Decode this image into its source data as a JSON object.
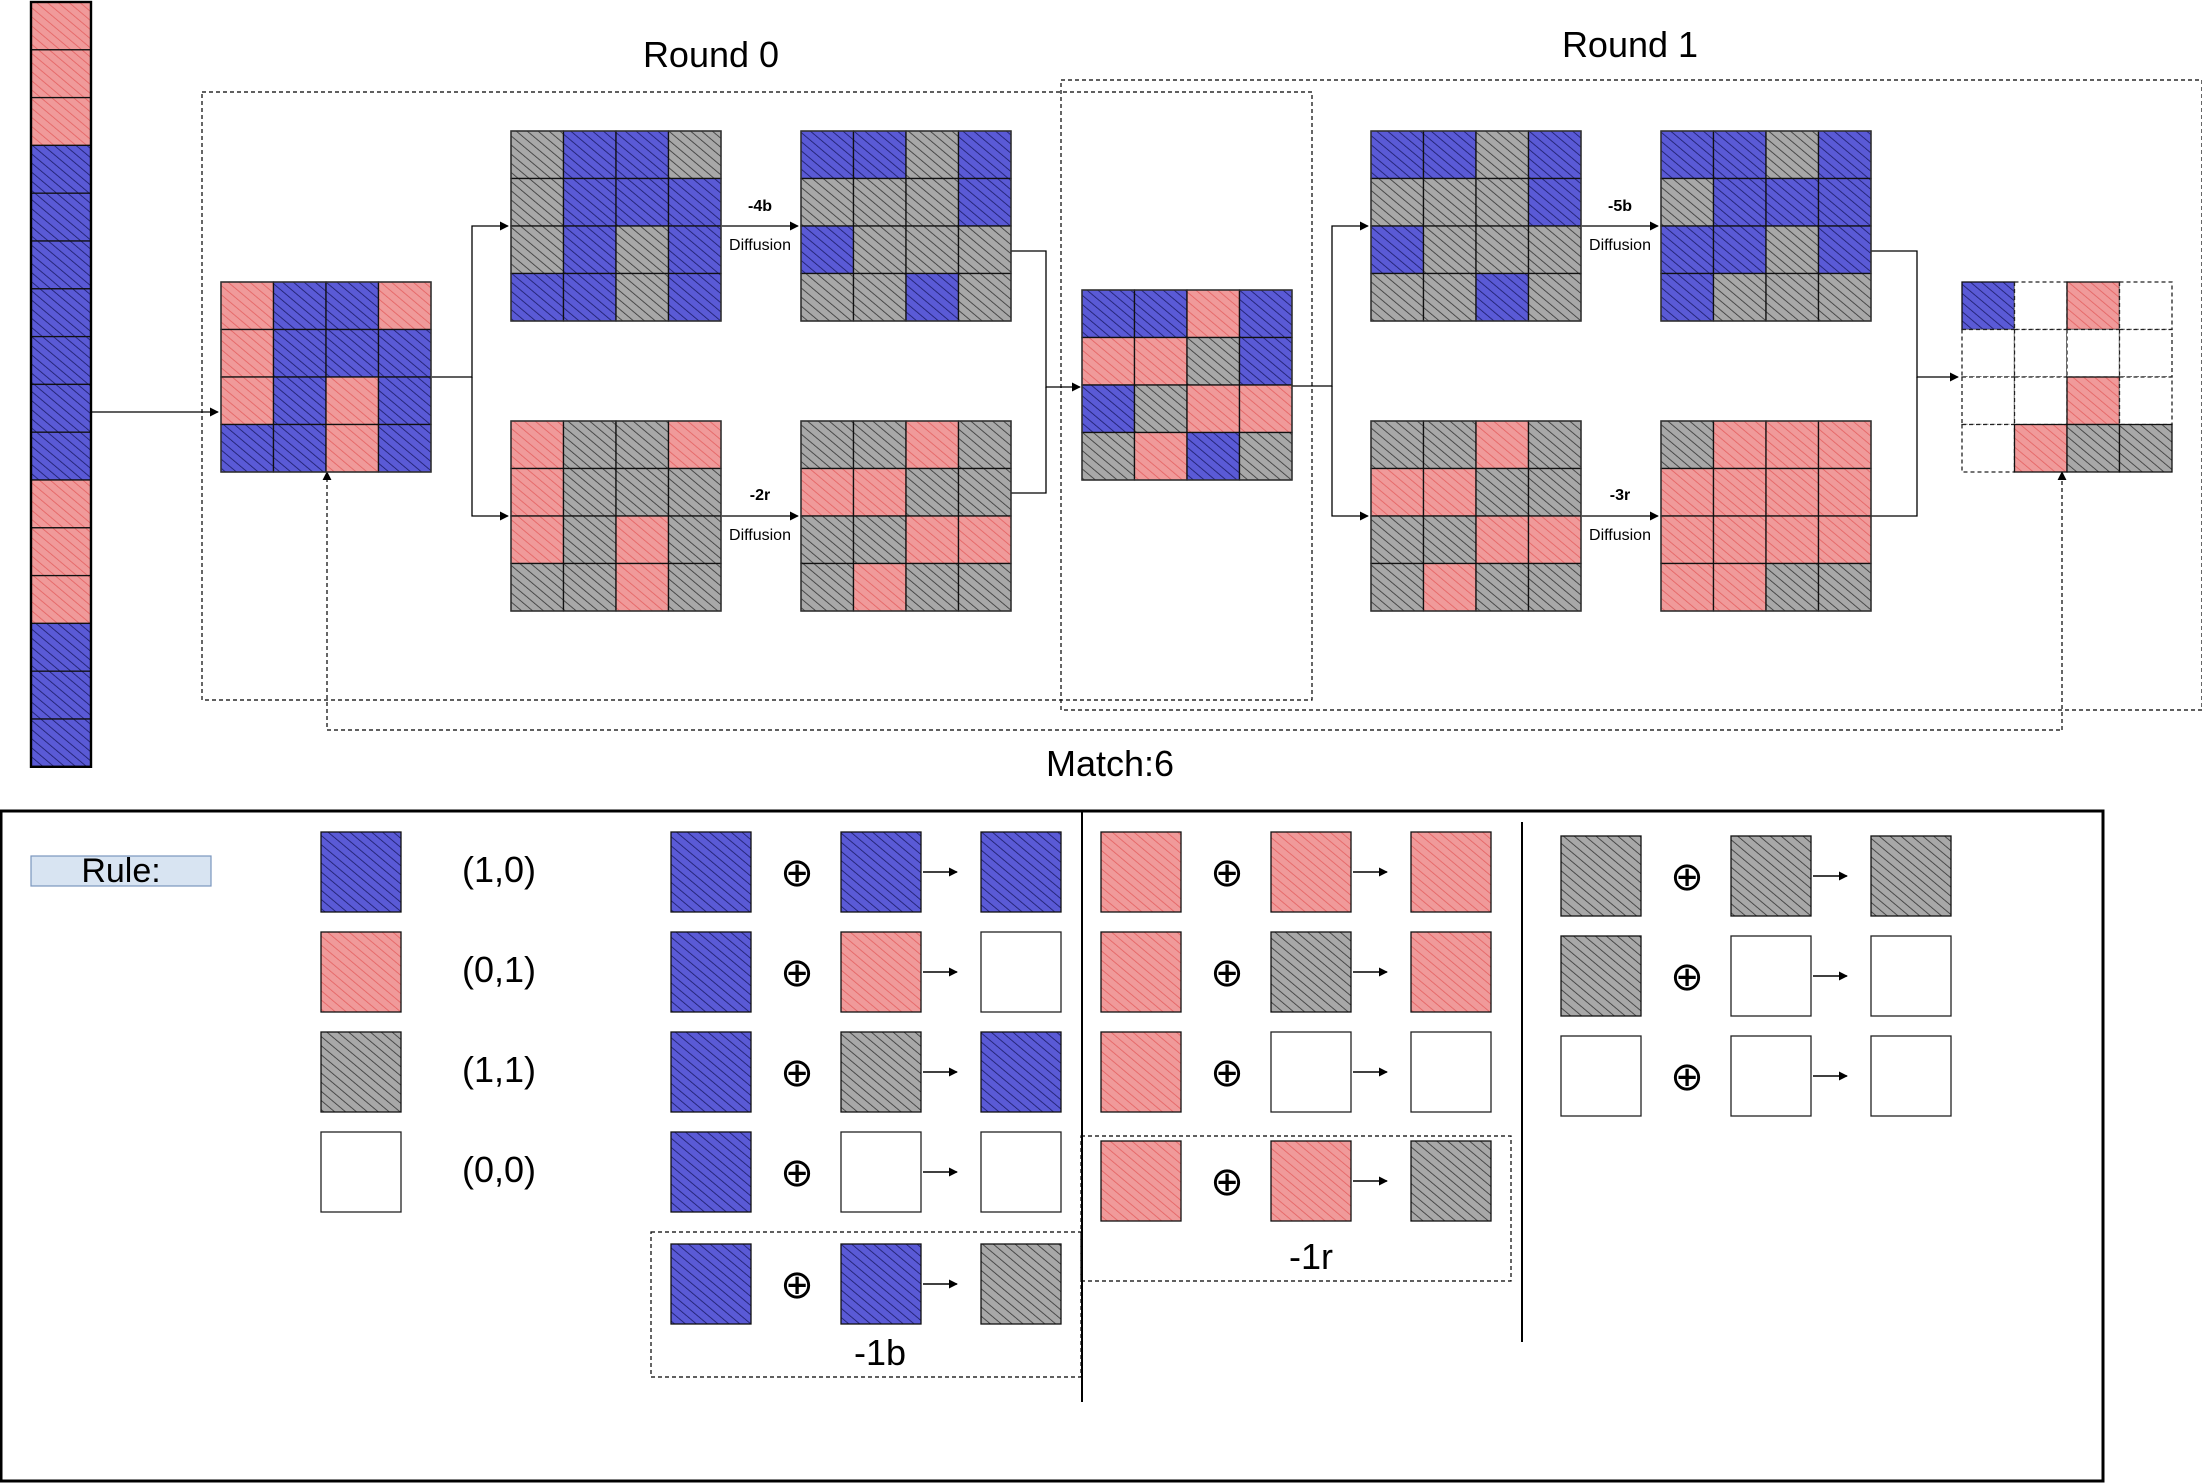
{
  "colors": {
    "blue": "#3535c8",
    "blue_dark": "#1a1a66",
    "red": "#e46060",
    "red_light": "#f09a9a",
    "red_dark": "#8a1010",
    "gray": "#8a8a8a",
    "gray_dark": "#333333",
    "white": "#ffffff"
  },
  "legend": {
    "B": "blue",
    "R": "red",
    "G": "gray",
    "W": "white"
  },
  "sequence": [
    "R",
    "R",
    "R",
    "B",
    "B",
    "B",
    "B",
    "B",
    "B",
    "B",
    "R",
    "R",
    "R",
    "B",
    "B",
    "B"
  ],
  "rounds": [
    {
      "title": "Round 0"
    },
    {
      "title": "Round 1"
    }
  ],
  "match_label": "Match:6",
  "arrows": [
    {
      "top": "-4b",
      "bottom": "Diffusion"
    },
    {
      "top": "-2r",
      "bottom": "Diffusion"
    },
    {
      "top": "-5b",
      "bottom": "Diffusion"
    },
    {
      "top": "-3r",
      "bottom": "Diffusion"
    }
  ],
  "grids": {
    "input": [
      "RBBR",
      "RBBB",
      "RBRB",
      "BBRB"
    ],
    "r0_blue_a": [
      "GBBG",
      "GBBB",
      "GBGB",
      "BBGB"
    ],
    "r0_blue_b": [
      "BBGB",
      "GGGB",
      "BGGG",
      "GGBG"
    ],
    "r0_red_a": [
      "RGGR",
      "RGGG",
      "RGRG",
      "GGRG"
    ],
    "r0_red_b": [
      "GGRG",
      "RRGG",
      "GGRR",
      "GRGG"
    ],
    "middle": [
      "BBRB",
      "RRGB",
      "BGRR",
      "GRBG"
    ],
    "r1_blue_a": [
      "BBGB",
      "GGGB",
      "BGGG",
      "GGBG"
    ],
    "r1_blue_b": [
      "BBGB",
      "GBBB",
      "BBGB",
      "BGGG"
    ],
    "r1_red_a": [
      "GGRG",
      "RRGG",
      "GGRR",
      "GRGG"
    ],
    "r1_red_b": [
      "GRRR",
      "RRRR",
      "RRRR",
      "RRGG"
    ],
    "output": [
      "BWRW",
      "WWWW",
      "WWRW",
      "WRGG"
    ]
  },
  "rule": {
    "title": "Rule:",
    "codes": [
      {
        "color": "B",
        "code": "(1,0)"
      },
      {
        "color": "R",
        "code": "(0,1)"
      },
      {
        "color": "G",
        "code": "(1,1)"
      },
      {
        "color": "W",
        "code": "(0,0)"
      }
    ],
    "operator": "⊕",
    "columns": [
      {
        "rows": [
          [
            "B",
            "B",
            "B"
          ],
          [
            "B",
            "R",
            "W"
          ],
          [
            "B",
            "G",
            "B"
          ],
          [
            "B",
            "W",
            "W"
          ],
          [
            "B",
            "B",
            "G"
          ]
        ],
        "special": 4,
        "special_label": "-1b"
      },
      {
        "rows": [
          [
            "R",
            "R",
            "R"
          ],
          [
            "R",
            "G",
            "R"
          ],
          [
            "R",
            "W",
            "W"
          ],
          [
            "R",
            "R",
            "G"
          ]
        ],
        "special": 3,
        "special_label": "-1r"
      },
      {
        "rows": [
          [
            "G",
            "G",
            "G"
          ],
          [
            "G",
            "W",
            "W"
          ],
          [
            "W",
            "W",
            "W"
          ]
        ],
        "special": -1,
        "special_label": ""
      }
    ]
  }
}
